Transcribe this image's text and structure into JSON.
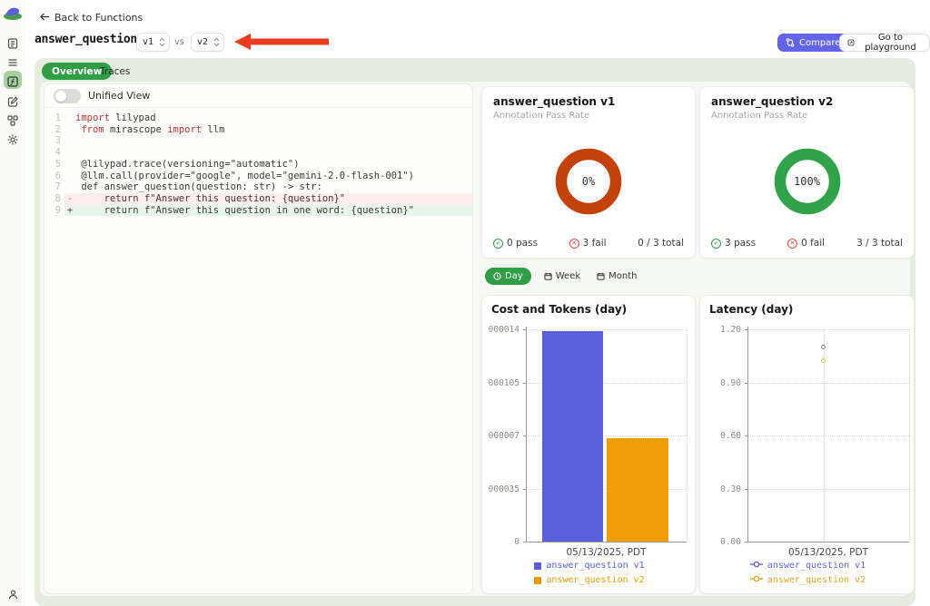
{
  "sidebar": {
    "icons": [
      "lilypad-logo",
      "traces",
      "list",
      "functions",
      "edit",
      "organization",
      "settings",
      "user"
    ],
    "active_icon": "functions"
  },
  "header": {
    "back_label": "Back to Functions",
    "title": "answer_question",
    "version_left": "v1",
    "versus": "vs",
    "version_right": "v2",
    "compare_label": "Compare",
    "playground_label": "Go to playground"
  },
  "annotation": {
    "arrow_color": "#e83b1f"
  },
  "tabs": {
    "overview": "Overview",
    "traces": "Traces"
  },
  "code_panel": {
    "unified_view_label": "Unified View",
    "lines": [
      {
        "num": "1",
        "marker": "",
        "bg": "",
        "tokens": [
          [
            "k",
            "import"
          ],
          [
            "p",
            " lilypad"
          ]
        ]
      },
      {
        "num": "2",
        "marker": "",
        "bg": "",
        "tokens": [
          [
            "p",
            " "
          ],
          [
            "k",
            "from"
          ],
          [
            "p",
            " mirascope "
          ],
          [
            "k",
            "import"
          ],
          [
            "p",
            " llm"
          ]
        ]
      },
      {
        "num": "3",
        "marker": "",
        "bg": "",
        "tokens": []
      },
      {
        "num": "4",
        "marker": "",
        "bg": "",
        "tokens": []
      },
      {
        "num": "5",
        "marker": "",
        "bg": "",
        "tokens": [
          [
            "p",
            " @lilypad.trace(versioning=\"automatic\")"
          ]
        ]
      },
      {
        "num": "6",
        "marker": "",
        "bg": "",
        "tokens": [
          [
            "p",
            " @llm.call(provider=\"google\", model=\"gemini-2.0-flash-001\")"
          ]
        ]
      },
      {
        "num": "7",
        "marker": "",
        "bg": "",
        "tokens": [
          [
            "p",
            " def answer_question(question: str) -> str:"
          ]
        ]
      },
      {
        "num": "8",
        "marker": "-",
        "bg": "del",
        "tokens": [
          [
            "p",
            "     return f\"Answer this question: {question}\""
          ]
        ]
      },
      {
        "num": "9",
        "marker": "+",
        "bg": "add",
        "tokens": [
          [
            "p",
            "     return f\"Answer this question in one word: {question}\""
          ]
        ]
      }
    ]
  },
  "version_cards": [
    {
      "title": "answer_question v1",
      "subtitle": "Annotation Pass Rate",
      "pass_rate": "0%",
      "ring_color": "#c2410c",
      "pass": "0 pass",
      "fail": "3 fail",
      "total": "0 / 3 total"
    },
    {
      "title": "answer_question v2",
      "subtitle": "Annotation Pass Rate",
      "pass_rate": "100%",
      "ring_color": "#2fa24a",
      "pass": "3 pass",
      "fail": "0 fail",
      "total": "3 / 3 total"
    }
  ],
  "time_toggle": {
    "options": [
      "Day",
      "Week",
      "Month"
    ],
    "active": "Day"
  },
  "chart_data": [
    {
      "id": "cost_tokens",
      "type": "bar",
      "title": "Cost and Tokens (day)",
      "categories": [
        "05/13/2025, PDT"
      ],
      "series": [
        {
          "name": "answer_question v1",
          "color": "#5a5fdc",
          "legend_color": "#5a5fdc",
          "values": [
            1.39e-05
          ]
        },
        {
          "name": "answer_question v2",
          "color": "#f09d0b",
          "legend_color": "#e59a0b",
          "values": [
            6.8e-06
          ]
        }
      ],
      "xlabel": "05/13/2025, PDT",
      "ylim": [
        0,
        1.4e-05
      ],
      "yticks": [
        0,
        3.5e-06,
        7e-06,
        1.05e-05,
        1.4e-05
      ],
      "ytick_labels_displayed": [
        "0",
        "000035",
        "000007",
        "000105",
        "000014"
      ],
      "grid": "dotted",
      "legend_position": "bottom"
    },
    {
      "id": "latency",
      "type": "scatter",
      "title": "Latency (day)",
      "categories": [
        "05/13/2025, PDT"
      ],
      "series": [
        {
          "name": "answer_question v1",
          "color": "#83838f",
          "legend_color": "#6468dd",
          "values": [
            1.1
          ]
        },
        {
          "name": "answer_question v2",
          "color": "#d8ca4e",
          "legend_color": "#e5a42a",
          "values": [
            1.02
          ]
        }
      ],
      "xlabel": "05/13/2025, PDT",
      "ylim": [
        0,
        1.2
      ],
      "yticks": [
        0,
        0.3,
        0.6,
        0.9,
        1.2
      ],
      "ytick_labels_displayed": [
        "0.00",
        "0.30",
        "0.60",
        "0.90",
        "1.20"
      ],
      "grid": "dotted",
      "legend_position": "bottom"
    }
  ]
}
